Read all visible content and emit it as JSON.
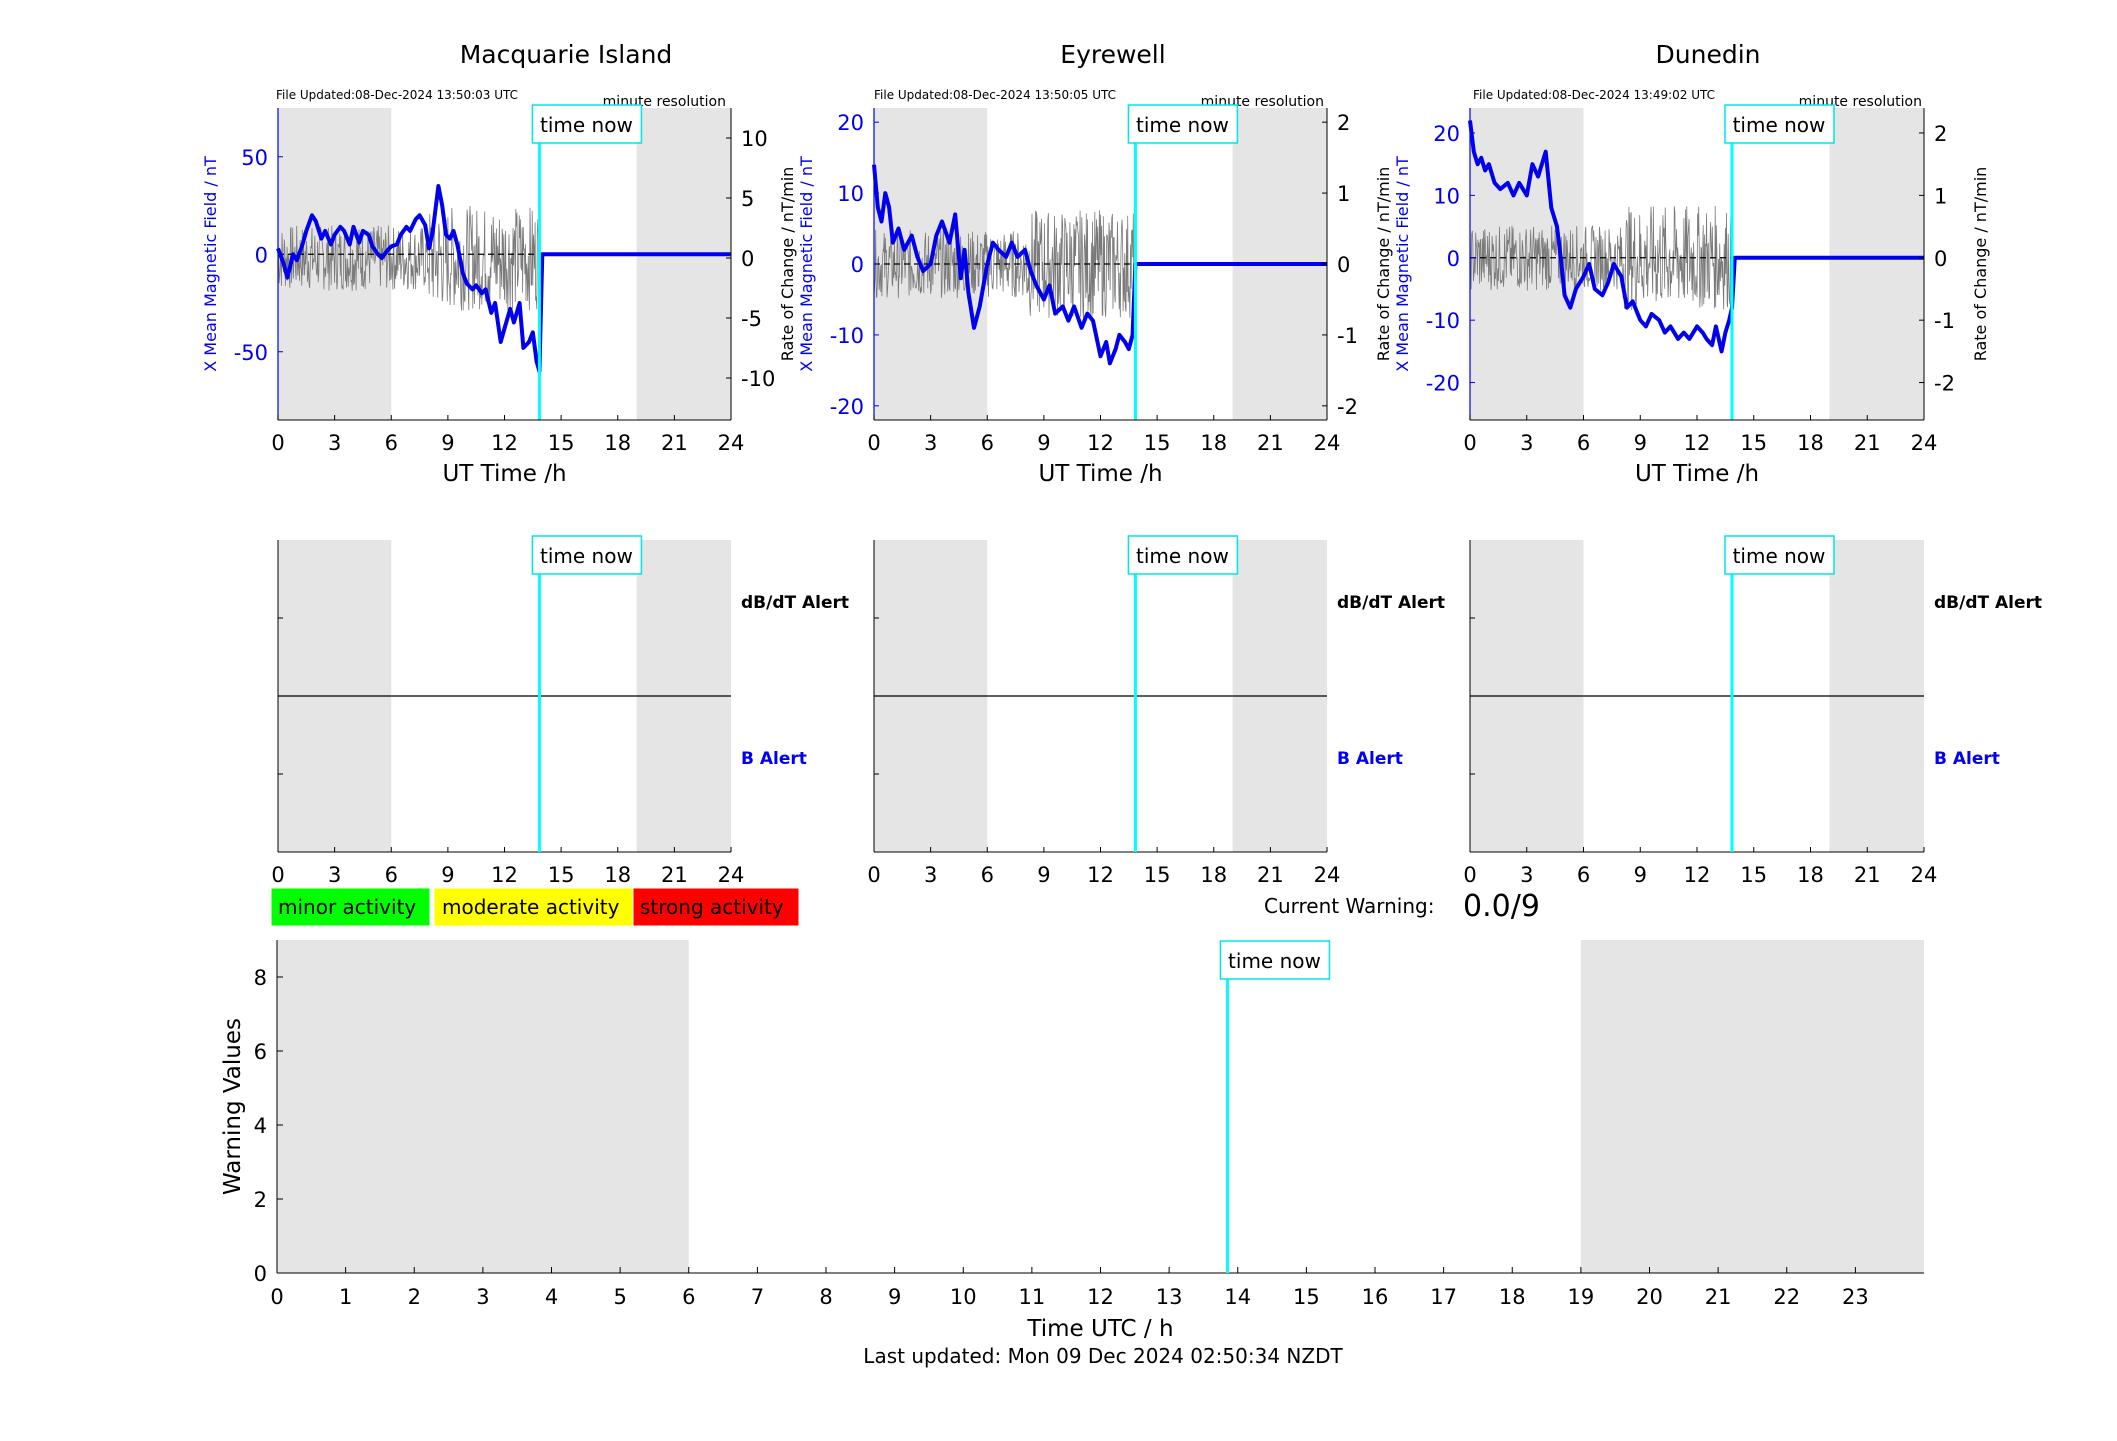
{
  "stations": [
    {
      "name": "Macquarie Island",
      "file_updated": "File Updated:08-Dec-2024 13:50:03 UTC",
      "resolution": "minute resolution",
      "y_label": "X Mean Magnetic Field / nT",
      "y2_label": "Rate of Change / nT/min",
      "x_label": "UT Time /h",
      "time_now_label": "time now",
      "y_ticks": [
        "50",
        "0",
        "-50"
      ],
      "y2_ticks": [
        "10",
        "5",
        "0",
        "-5",
        "-10"
      ],
      "x_ticks": [
        "0",
        "3",
        "6",
        "9",
        "12",
        "15",
        "18",
        "21",
        "24"
      ],
      "alert_dbdt": "dB/dT Alert",
      "alert_b": "B Alert"
    },
    {
      "name": "Eyrewell",
      "file_updated": "File Updated:08-Dec-2024 13:50:05 UTC",
      "resolution": "minute resolution",
      "y_label": "X Mean Magnetic Field / nT",
      "y2_label": "Rate of Change / nT/min",
      "x_label": "UT Time /h",
      "time_now_label": "time now",
      "y_ticks": [
        "20",
        "10",
        "0",
        "-10",
        "-20"
      ],
      "y2_ticks": [
        "2",
        "1",
        "0",
        "-1",
        "-2"
      ],
      "x_ticks": [
        "0",
        "3",
        "6",
        "9",
        "12",
        "15",
        "18",
        "21",
        "24"
      ],
      "alert_dbdt": "dB/dT Alert",
      "alert_b": "B Alert"
    },
    {
      "name": "Dunedin",
      "file_updated": "File Updated:08-Dec-2024 13:49:02 UTC",
      "resolution": "minute resolution",
      "y_label": "X Mean Magnetic Field / nT",
      "y2_label": "Rate of Change / nT/min",
      "x_label": "UT Time /h",
      "time_now_label": "time now",
      "y_ticks": [
        "20",
        "10",
        "0",
        "-10",
        "-20"
      ],
      "y2_ticks": [
        "2",
        "1",
        "0",
        "-1",
        "-2"
      ],
      "x_ticks": [
        "0",
        "3",
        "6",
        "9",
        "12",
        "15",
        "18",
        "21",
        "24"
      ],
      "alert_dbdt": "dB/dT Alert",
      "alert_b": "B Alert"
    }
  ],
  "legend": {
    "minor": "minor activity",
    "moderate": "moderate activity",
    "strong": "strong activity",
    "minor_color": "#00ff00",
    "moderate_color": "#ffff00",
    "strong_color": "#ff0000"
  },
  "current_warning": {
    "label": "Current Warning:",
    "value": "0.0/9"
  },
  "warning_chart": {
    "y_label": "Warning Values",
    "x_label": "Time UTC / h",
    "time_now_label": "time now",
    "y_ticks": [
      "8",
      "6",
      "4",
      "2",
      "0"
    ],
    "x_ticks": [
      "0",
      "1",
      "2",
      "3",
      "4",
      "5",
      "6",
      "7",
      "8",
      "9",
      "10",
      "11",
      "12",
      "13",
      "14",
      "15",
      "16",
      "17",
      "18",
      "19",
      "20",
      "21",
      "22",
      "23"
    ]
  },
  "footer": "Last updated: Mon 09 Dec 2024 02:50:34 NZDT",
  "chart_data": [
    {
      "type": "line",
      "title": "Macquarie Island",
      "xlabel": "UT Time /h",
      "ylabel": "X Mean Magnetic Field / nT",
      "y2label": "Rate of Change / nT/min",
      "xlim": [
        0,
        24
      ],
      "ylim": [
        -85,
        75
      ],
      "y2lim": [
        -13.5,
        12.5
      ],
      "time_now_h": 13.85,
      "night_shading_h": [
        [
          0,
          6
        ],
        [
          19,
          24
        ]
      ],
      "series": [
        {
          "x": [
            0,
            0.3,
            0.5,
            0.8,
            1,
            1.3,
            1.5,
            1.8,
            2,
            2.3,
            2.5,
            2.8,
            3,
            3.3,
            3.5,
            3.8,
            4,
            4.3,
            4.5,
            4.8,
            5,
            5.3,
            5.5,
            5.8,
            6,
            6.3,
            6.5,
            6.8,
            7,
            7.3,
            7.5,
            7.8,
            8,
            8.2,
            8.5,
            8.7,
            8.9,
            9.1,
            9.3,
            9.5,
            9.8,
            10,
            10.3,
            10.5,
            10.8,
            11,
            11.3,
            11.5,
            11.8,
            12,
            12.3,
            12.5,
            12.8,
            13,
            13.3,
            13.5,
            13.7,
            13.85,
            14,
            24
          ],
          "values": [
            3,
            -5,
            -12,
            0,
            -3,
            5,
            12,
            20,
            17,
            8,
            12,
            5,
            10,
            14,
            12,
            5,
            14,
            6,
            12,
            10,
            4,
            0,
            -2,
            2,
            4,
            5,
            10,
            14,
            12,
            18,
            20,
            15,
            3,
            12,
            35,
            25,
            10,
            8,
            12,
            5,
            -10,
            -15,
            -18,
            -16,
            -20,
            -18,
            -30,
            -25,
            -45,
            -38,
            -28,
            -35,
            -25,
            -48,
            -45,
            -40,
            -55,
            -60,
            0,
            0
          ]
        }
      ]
    },
    {
      "type": "line",
      "title": "Eyrewell",
      "xlabel": "UT Time /h",
      "ylabel": "X Mean Magnetic Field / nT",
      "y2label": "Rate of Change / nT/min",
      "xlim": [
        0,
        24
      ],
      "ylim": [
        -22,
        22
      ],
      "y2lim": [
        -2.2,
        2.2
      ],
      "time_now_h": 13.85,
      "night_shading_h": [
        [
          0,
          6
        ],
        [
          19,
          24
        ]
      ],
      "series": [
        {
          "x": [
            0,
            0.2,
            0.4,
            0.6,
            0.8,
            1,
            1.3,
            1.6,
            2,
            2.3,
            2.6,
            3,
            3.3,
            3.6,
            4,
            4.3,
            4.6,
            4.8,
            5,
            5.3,
            5.6,
            6,
            6.3,
            6.6,
            7,
            7.3,
            7.6,
            8,
            8.3,
            8.6,
            9,
            9.3,
            9.6,
            10,
            10.3,
            10.6,
            11,
            11.3,
            11.6,
            12,
            12.3,
            12.5,
            12.8,
            13,
            13.3,
            13.5,
            13.7,
            13.85,
            14,
            24
          ],
          "values": [
            14,
            8,
            6,
            10,
            8,
            3,
            5,
            2,
            4,
            1,
            -1,
            0,
            4,
            6,
            3,
            7,
            -2,
            2,
            -4,
            -9,
            -6,
            0,
            3,
            2,
            1,
            3,
            1,
            2,
            -1,
            -3,
            -5,
            -3,
            -7,
            -6,
            -8,
            -6,
            -9,
            -7,
            -8,
            -13,
            -11,
            -14,
            -12,
            -10,
            -11,
            -12,
            -10,
            0,
            0,
            0
          ]
        }
      ]
    },
    {
      "type": "line",
      "title": "Dunedin",
      "xlabel": "UT Time /h",
      "ylabel": "X Mean Magnetic Field / nT",
      "y2label": "Rate of Change / nT/min",
      "xlim": [
        0,
        24
      ],
      "ylim": [
        -26,
        24
      ],
      "y2lim": [
        -2.6,
        2.4
      ],
      "time_now_h": 13.85,
      "night_shading_h": [
        [
          0,
          6
        ],
        [
          19,
          24
        ]
      ],
      "series": [
        {
          "x": [
            0,
            0.2,
            0.4,
            0.6,
            0.8,
            1,
            1.3,
            1.6,
            2,
            2.3,
            2.6,
            3,
            3.3,
            3.6,
            4,
            4.3,
            4.6,
            4.8,
            5,
            5.3,
            5.6,
            6,
            6.3,
            6.6,
            7,
            7.3,
            7.6,
            8,
            8.3,
            8.6,
            9,
            9.3,
            9.6,
            10,
            10.3,
            10.6,
            11,
            11.3,
            11.6,
            12,
            12.3,
            12.5,
            12.8,
            13,
            13.3,
            13.5,
            13.7,
            13.85,
            14,
            24
          ],
          "values": [
            22,
            17,
            15,
            16,
            14,
            15,
            12,
            11,
            12,
            10,
            12,
            10,
            15,
            13,
            17,
            8,
            5,
            0,
            -6,
            -8,
            -5,
            -3,
            -1,
            -5,
            -6,
            -4,
            -1,
            -3,
            -8,
            -7,
            -10,
            -11,
            -9,
            -10,
            -12,
            -11,
            -13,
            -12,
            -13,
            -11,
            -12,
            -13,
            -14,
            -11,
            -15,
            -12,
            -10,
            -8,
            0,
            0
          ]
        }
      ]
    },
    {
      "type": "line",
      "title": "",
      "xlabel": "Time UTC / h",
      "ylabel": "Warning Values",
      "xlim": [
        0,
        24
      ],
      "ylim": [
        0,
        9
      ],
      "time_now_h": 13.85,
      "night_shading_h": [
        [
          0,
          6
        ],
        [
          19,
          24
        ]
      ],
      "series": []
    }
  ]
}
